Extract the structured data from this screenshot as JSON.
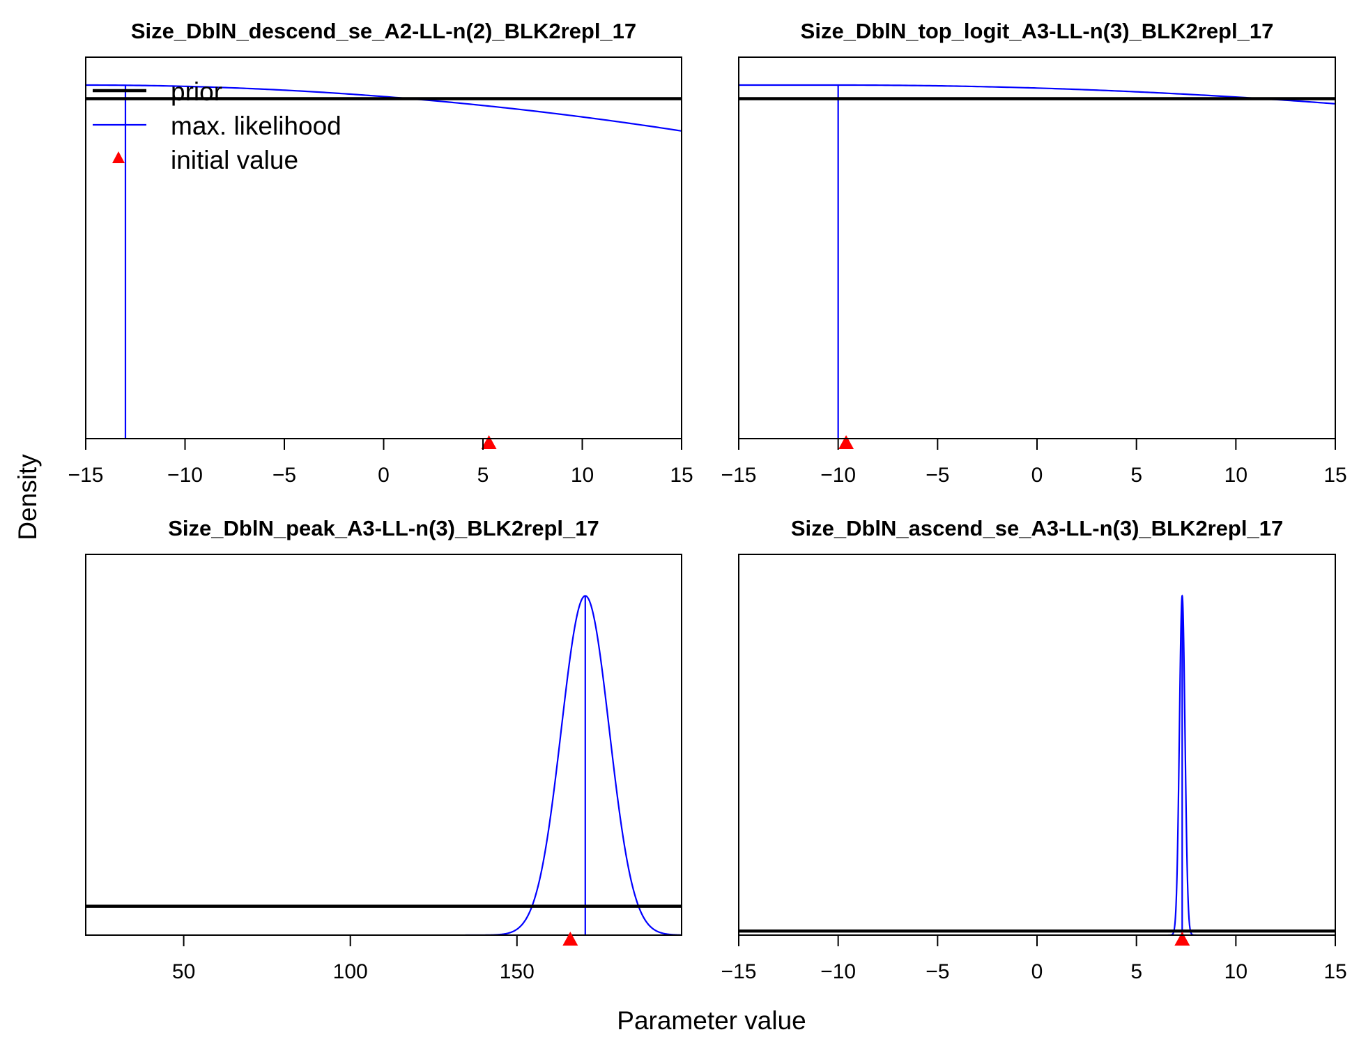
{
  "figure": {
    "xlabel": "Parameter value",
    "ylabel": "Density"
  },
  "legend": {
    "placement": "top-left",
    "entries": [
      {
        "label": "prior",
        "color": "#000000",
        "style": "thick-line"
      },
      {
        "label": "max. likelihood",
        "color": "#0000ff",
        "style": "line"
      },
      {
        "label": "initial value",
        "color": "#ff0000",
        "style": "triangle"
      }
    ]
  },
  "colors": {
    "prior": "#000000",
    "likelihood": "#0000ff",
    "initial": "#ff0000"
  },
  "chart_data": [
    {
      "type": "line",
      "title": "Size_DblN_descend_se_A2-LL-n(2)_BLK2repl_17",
      "xlim": [
        -15,
        15
      ],
      "xticks": [
        -15,
        -10,
        -5,
        0,
        5,
        10,
        15
      ],
      "ylim": [
        0,
        1.04
      ],
      "prior_density": 1.0,
      "likelihood": {
        "shape": "decreasing",
        "x_start": -15,
        "y_start": 1.04,
        "x_end": 15,
        "y_end": 0.905,
        "x_peak": -15
      },
      "mle": -13,
      "initial": 5.3
    },
    {
      "type": "line",
      "title": "Size_DblN_top_logit_A3-LL-n(3)_BLK2repl_17",
      "xlim": [
        -15,
        15
      ],
      "xticks": [
        -15,
        -10,
        -5,
        0,
        5,
        10,
        15
      ],
      "ylim": [
        0,
        1.04
      ],
      "prior_density": 1.0,
      "likelihood": {
        "shape": "decreasing",
        "x_start": -15,
        "y_start": 1.04,
        "x_end": 15,
        "y_end": 0.985,
        "x_peak": -10
      },
      "mle": -10,
      "initial": -9.6
    },
    {
      "type": "line",
      "title": "Size_DblN_peak_A3-LL-n(3)_BLK2repl_17",
      "xlim": [
        20.6,
        199.4
      ],
      "xticks": [
        50,
        100,
        150
      ],
      "ylim": [
        0,
        1.04
      ],
      "prior_density": 0.085,
      "likelihood": {
        "shape": "normal",
        "mean": 170.5,
        "sd": 7.2
      },
      "mle": 170.5,
      "initial": 166
    },
    {
      "type": "line",
      "title": "Size_DblN_ascend_se_A3-LL-n(3)_BLK2repl_17",
      "xlim": [
        -15,
        15
      ],
      "xticks": [
        -15,
        -10,
        -5,
        0,
        5,
        10,
        15
      ],
      "ylim": [
        0,
        1.04
      ],
      "prior_density": 0.012,
      "likelihood": {
        "shape": "normal",
        "mean": 7.3,
        "sd": 0.14
      },
      "mle": 7.3,
      "initial": 7.3
    }
  ]
}
